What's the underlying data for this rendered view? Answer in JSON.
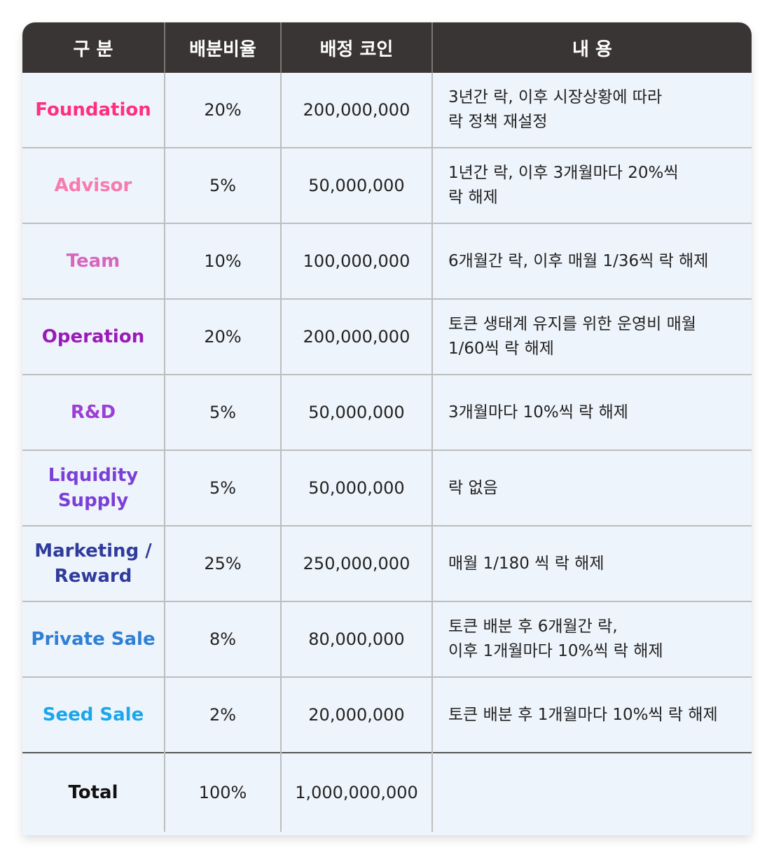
{
  "headers": [
    "구 분",
    "배분비율",
    "배정 코인",
    "내 용"
  ],
  "rows": [
    {
      "name": "Foundation",
      "color": "#ff2e7e",
      "ratio": "20%",
      "coins": "200,000,000",
      "desc_line1": "3년간 락, 이후 시장상황에 따라",
      "desc_line2": "락 정책 재설정"
    },
    {
      "name": "Advisor",
      "color": "#f77bb0",
      "ratio": "5%",
      "coins": "50,000,000",
      "desc_line1": "1년간 락, 이후 3개월마다 20%씩",
      "desc_line2": "락 해제"
    },
    {
      "name": "Team",
      "color": "#d766bd",
      "ratio": "10%",
      "coins": "100,000,000",
      "desc_line1": "6개월간 락, 이후 매월 1/36씩 락 해제",
      "desc_line2": ""
    },
    {
      "name": "Operation",
      "color": "#9a1ab8",
      "ratio": "20%",
      "coins": "200,000,000",
      "desc_line1": "토큰 생태계 유지를 위한 운영비 매월",
      "desc_line2": "1/60씩 락 해제"
    },
    {
      "name": "R&D",
      "color": "#9c3ed6",
      "ratio": "5%",
      "coins": "50,000,000",
      "desc_line1": "3개월마다 10%씩 락 해제",
      "desc_line2": ""
    },
    {
      "name_line1": "Liquidity",
      "name_line2": "Supply",
      "color": "#7b3fd8",
      "ratio": "5%",
      "coins": "50,000,000",
      "desc_line1": "락 없음",
      "desc_line2": ""
    },
    {
      "name_line1": "Marketing /",
      "name_line2": "Reward",
      "color": "#2f3c9c",
      "ratio": "25%",
      "coins": "250,000,000",
      "desc_line1": "매월 1/180 씩 락 해제",
      "desc_line2": ""
    },
    {
      "name": "Private Sale",
      "color": "#2e7fd6",
      "ratio": "8%",
      "coins": "80,000,000",
      "desc_line1": "토큰 배분 후 6개월간 락,",
      "desc_line2": "이후 1개월마다 10%씩 락 해제"
    },
    {
      "name": "Seed Sale",
      "color": "#1aa7ec",
      "ratio": "2%",
      "coins": "20,000,000",
      "desc_line1": "토큰 배분 후 1개월마다 10%씩 락 해제",
      "desc_line2": ""
    }
  ],
  "total": {
    "name": "Total",
    "ratio": "100%",
    "coins": "1,000,000,000",
    "desc": ""
  }
}
